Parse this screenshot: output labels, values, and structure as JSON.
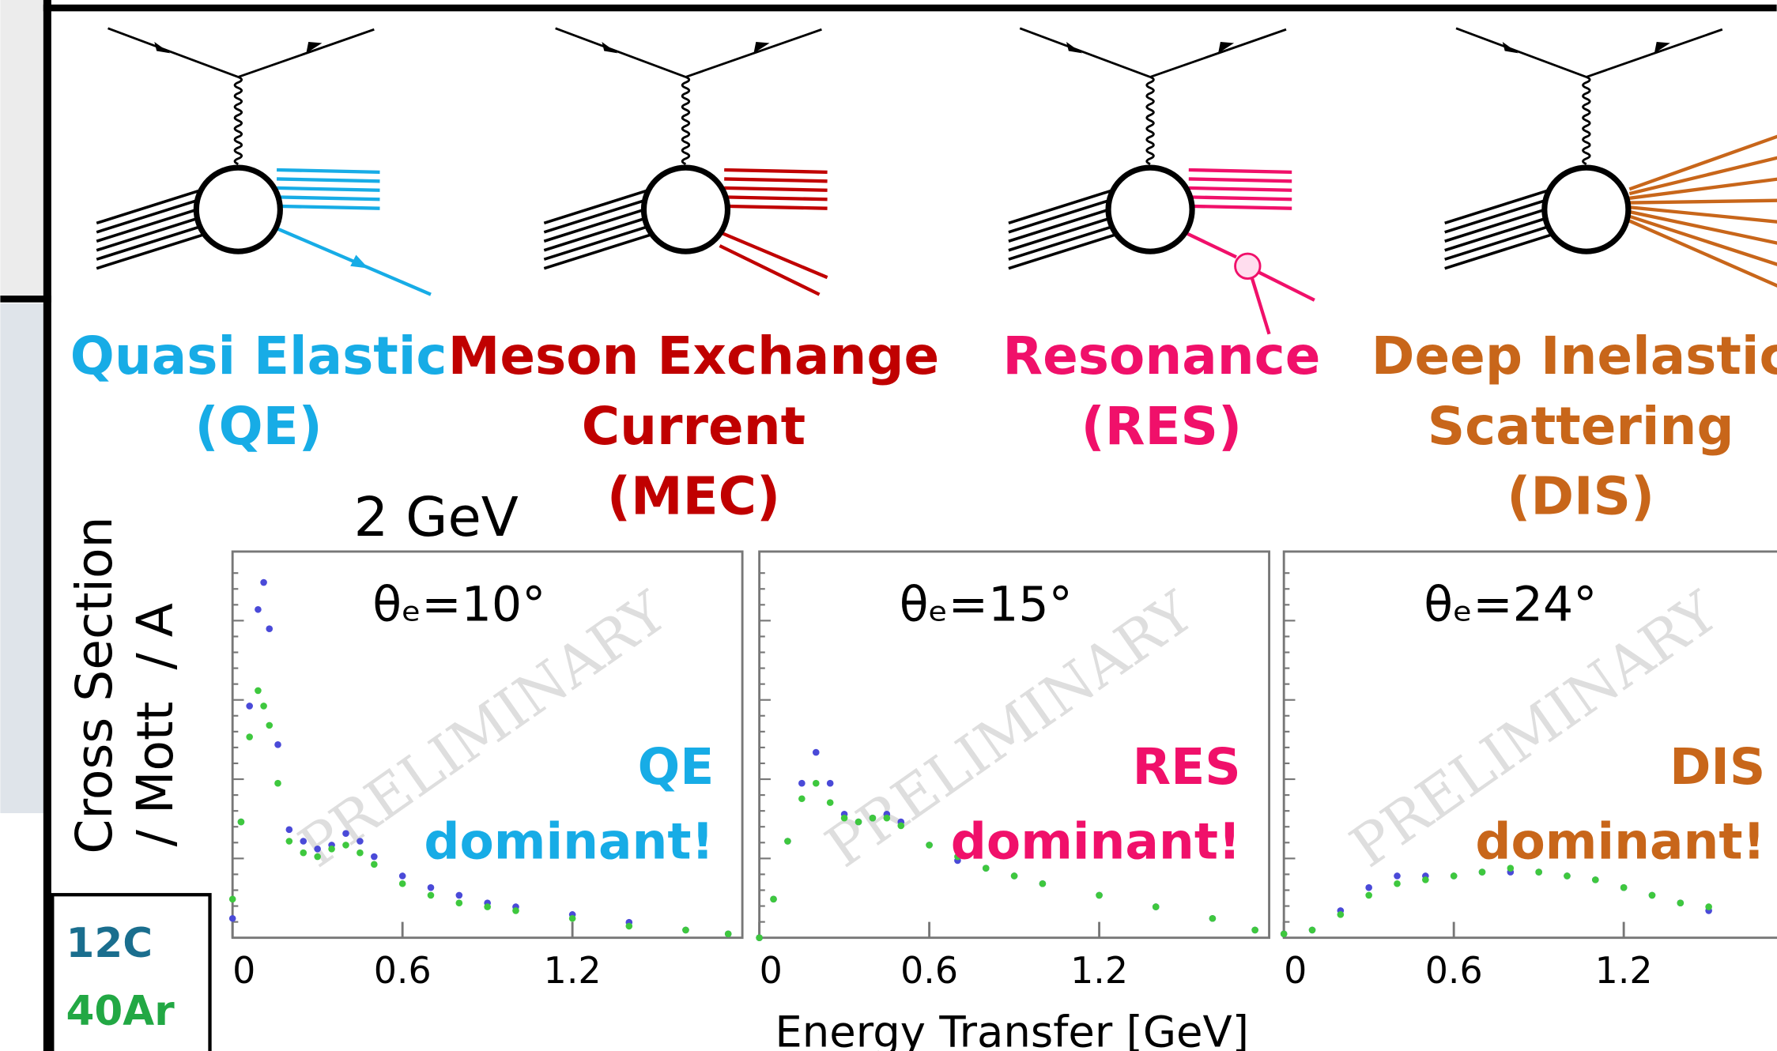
{
  "processes": [
    {
      "label": [
        "Quasi Elastic",
        "(QE)"
      ],
      "color": "#17ace6"
    },
    {
      "label": [
        "Meson Exchange",
        "Current",
        "(MEC)"
      ],
      "color": "#c00000"
    },
    {
      "label": [
        "Resonance",
        "(RES)"
      ],
      "color": "#f0106a"
    },
    {
      "label": [
        "Deep Inelastic",
        "Scattering",
        "(DIS)"
      ],
      "color": "#c8661a"
    }
  ],
  "energy_label": "2 GeV",
  "y_axis_label": [
    "Cross Section",
    "/ Mott  / A"
  ],
  "x_axis_label": "Energy Transfer [GeV]",
  "legend": {
    "colors": [
      "#1a6e8e",
      "#22a844"
    ]
  },
  "chart_data": [
    {
      "type": "scatter",
      "annotation": "θₑ=10°",
      "callout": [
        "QE",
        "dominant!"
      ],
      "callout_color": "#17ace6",
      "watermark": "PRELIMINARY",
      "xlim": [
        0,
        1.8
      ],
      "xticks": [
        0,
        0.6,
        1.2
      ],
      "ylim": [
        0,
        1
      ],
      "x": [
        0,
        0.03,
        0.06,
        0.09,
        0.11,
        0.13,
        0.16,
        0.2,
        0.25,
        0.3,
        0.35,
        0.4,
        0.45,
        0.5,
        0.6,
        0.7,
        0.8,
        0.9,
        1.0,
        1.2,
        1.4,
        1.6,
        1.75
      ],
      "series": [
        {
          "name": "12C",
          "color": "#4a4ad8",
          "values": [
            0.05,
            0.3,
            0.6,
            0.85,
            0.92,
            0.8,
            0.5,
            0.28,
            0.25,
            0.23,
            0.24,
            0.27,
            0.25,
            0.21,
            0.16,
            0.13,
            0.11,
            0.09,
            0.08,
            0.06,
            0.04,
            0.02,
            0.01
          ]
        },
        {
          "name": "40Ar",
          "color": "#3ec83e",
          "values": [
            0.1,
            0.3,
            0.52,
            0.64,
            0.6,
            0.55,
            0.4,
            0.25,
            0.22,
            0.21,
            0.23,
            0.24,
            0.22,
            0.19,
            0.14,
            0.11,
            0.09,
            0.08,
            0.07,
            0.05,
            0.03,
            0.02,
            0.01
          ]
        }
      ]
    },
    {
      "type": "scatter",
      "annotation": "θₑ=15°",
      "callout": [
        "RES",
        "dominant!"
      ],
      "callout_color": "#f0106a",
      "watermark": "PRELIMINARY",
      "xlim": [
        0,
        1.8
      ],
      "xticks": [
        0,
        0.6,
        1.2
      ],
      "ylim": [
        0,
        1
      ],
      "x": [
        0,
        0.05,
        0.1,
        0.15,
        0.2,
        0.25,
        0.3,
        0.35,
        0.4,
        0.45,
        0.5,
        0.6,
        0.7,
        0.8,
        0.9,
        1.0,
        1.2,
        1.4,
        1.6,
        1.75
      ],
      "series": [
        {
          "name": "12C",
          "color": "#4a4ad8",
          "values": [
            0,
            0.1,
            0.25,
            0.4,
            0.48,
            0.4,
            0.32,
            0.3,
            0.31,
            0.32,
            0.3,
            0.24,
            0.2,
            0.18,
            0.16,
            0.14,
            0.11,
            0.08,
            0.05,
            0.02
          ]
        },
        {
          "name": "40Ar",
          "color": "#3ec83e",
          "values": [
            0,
            0.1,
            0.25,
            0.36,
            0.4,
            0.35,
            0.31,
            0.3,
            0.31,
            0.31,
            0.29,
            0.24,
            0.21,
            0.18,
            0.16,
            0.14,
            0.11,
            0.08,
            0.05,
            0.02
          ]
        }
      ]
    },
    {
      "type": "scatter",
      "annotation": "θₑ=24°",
      "callout": [
        "DIS",
        "dominant!"
      ],
      "callout_color": "#c8661a",
      "watermark": "PRELIMINARY",
      "xlim": [
        0,
        1.8
      ],
      "xticks": [
        0,
        0.6,
        1.2
      ],
      "ylim": [
        0,
        1
      ],
      "x": [
        0,
        0.1,
        0.2,
        0.3,
        0.4,
        0.5,
        0.6,
        0.7,
        0.8,
        0.9,
        1.0,
        1.1,
        1.2,
        1.3,
        1.4,
        1.5
      ],
      "series": [
        {
          "name": "12C",
          "color": "#4a4ad8",
          "values": [
            0.01,
            0.02,
            0.07,
            0.13,
            0.16,
            0.16,
            0.16,
            0.17,
            0.17,
            0.17,
            0.16,
            0.15,
            0.13,
            0.11,
            0.09,
            0.07
          ]
        },
        {
          "name": "40Ar",
          "color": "#3ec83e",
          "values": [
            0.01,
            0.02,
            0.06,
            0.11,
            0.14,
            0.15,
            0.16,
            0.17,
            0.18,
            0.17,
            0.16,
            0.15,
            0.13,
            0.11,
            0.09,
            0.08
          ]
        }
      ]
    }
  ]
}
